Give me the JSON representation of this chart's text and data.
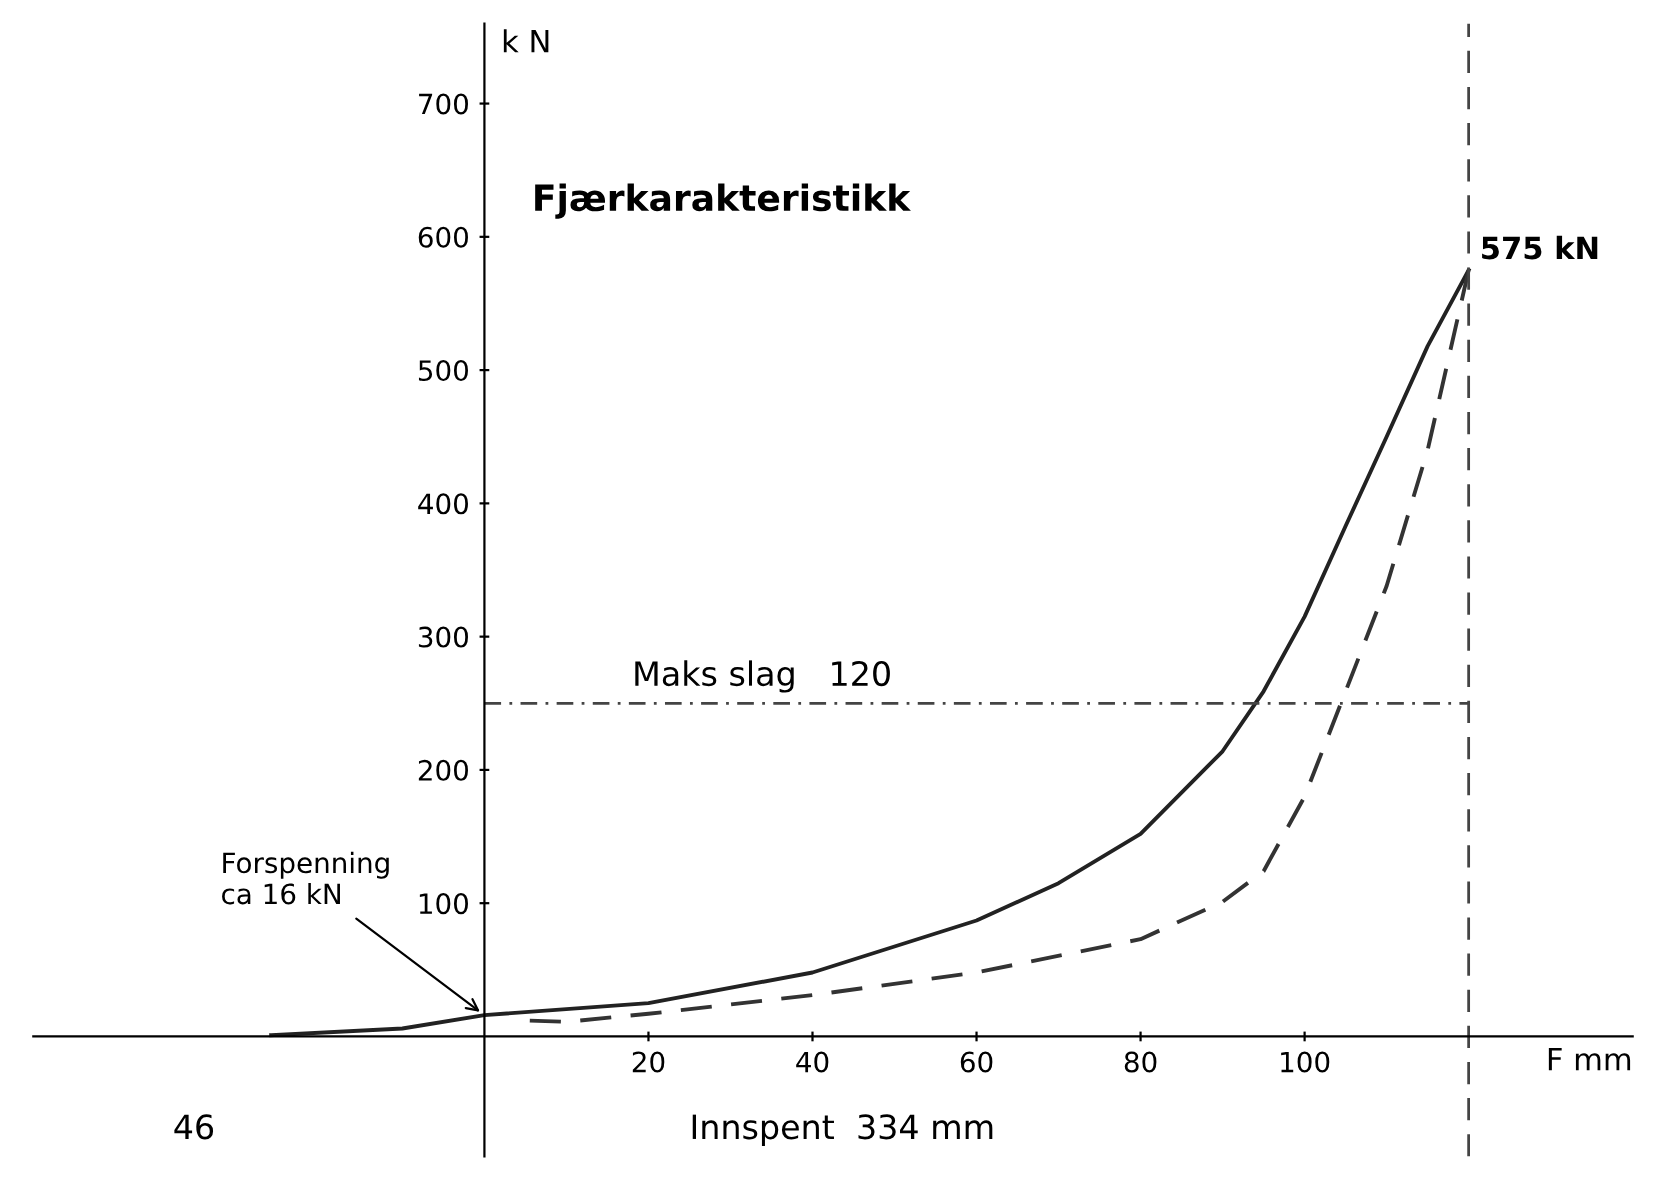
{
  "chart_data": {
    "type": "line",
    "title": "Fjærkarakteristikk",
    "xlabel": "F mm",
    "ylabel": "k N",
    "xlim": [
      -55,
      140
    ],
    "ylim": [
      -90,
      760
    ],
    "xticks": [
      20,
      40,
      60,
      80,
      100
    ],
    "yticks": [
      100,
      200,
      300,
      400,
      500,
      600,
      700
    ],
    "grid": false,
    "marker": "none",
    "series": [
      {
        "color": "#222222",
        "line_style": "solid",
        "x": [
          -26,
          -10,
          0,
          20,
          40,
          60,
          70,
          80,
          90,
          95,
          100,
          105,
          110,
          115,
          120
        ],
        "values": [
          1,
          6,
          16,
          25,
          48,
          87,
          115,
          152,
          214,
          259,
          315,
          383,
          450,
          518,
          575
        ]
      },
      {
        "color": "#333333",
        "line_style": "dashed",
        "x": [
          120,
          115,
          110,
          105,
          100,
          95,
          90,
          80,
          60,
          40,
          20,
          10,
          5
        ],
        "values": [
          575,
          440,
          338,
          259,
          180,
          124,
          101,
          73,
          48,
          31,
          17,
          11,
          12
        ]
      }
    ],
    "ref_lines": [
      {
        "axis": "y",
        "value": 250,
        "label": "Maks slag   120",
        "color": "#444444",
        "line_style": "dotted"
      },
      {
        "axis": "x",
        "value": 120,
        "color": "#444444",
        "line_style": "dashed"
      }
    ],
    "annotations": [
      {
        "text": "575 kN",
        "x": 120,
        "y": 575
      },
      {
        "text": "Forspenning\nca 16 kN",
        "x": 0,
        "y": 16
      },
      "46",
      "Innspent  334 mm"
    ]
  }
}
